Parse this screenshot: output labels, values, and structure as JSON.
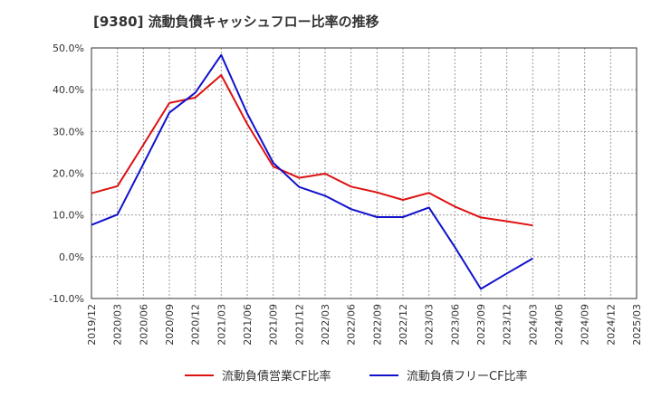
{
  "chart_data": {
    "type": "line",
    "title": "[9380]  流動負債キャッシュフロー比率の推移",
    "xlabel": "",
    "ylabel": "",
    "ylim": [
      -10,
      50
    ],
    "yticks": [
      -10,
      0,
      10,
      20,
      30,
      40,
      50
    ],
    "ytick_labels": [
      "-10.0%",
      "0.0%",
      "10.0%",
      "20.0%",
      "30.0%",
      "40.0%",
      "50.0%"
    ],
    "categories": [
      "2019/12",
      "2020/03",
      "2020/06",
      "2020/09",
      "2020/12",
      "2021/03",
      "2021/06",
      "2021/09",
      "2021/12",
      "2022/03",
      "2022/06",
      "2022/09",
      "2022/12",
      "2023/03",
      "2023/06",
      "2023/09",
      "2023/12",
      "2024/03",
      "2024/06",
      "2024/09",
      "2024/12",
      "2025/03"
    ],
    "grid": true,
    "legend_position": "bottom",
    "series": [
      {
        "name": "流動負債営業CF比率",
        "color": "#dd1111",
        "values": [
          15.2,
          16.9,
          26.8,
          36.8,
          38.1,
          43.5,
          31.8,
          21.6,
          18.9,
          19.9,
          16.8,
          15.4,
          13.6,
          15.3,
          12.0,
          9.4,
          8.5,
          7.5,
          null,
          null,
          null,
          null
        ]
      },
      {
        "name": "流動負債フリーCF比率",
        "color": "#1111cc",
        "values": [
          7.6,
          10.1,
          22.2,
          34.5,
          39.3,
          48.3,
          34.3,
          22.5,
          16.7,
          14.6,
          11.4,
          9.5,
          9.5,
          11.8,
          2.3,
          -7.7,
          -4.0,
          -0.4,
          null,
          null,
          null,
          null
        ]
      }
    ]
  }
}
